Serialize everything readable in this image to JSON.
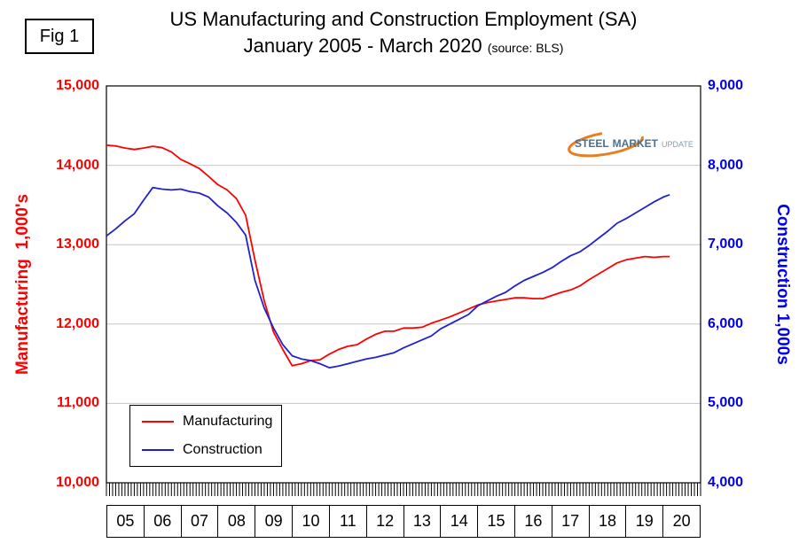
{
  "fig_label": "Fig 1",
  "title": {
    "line1": "US Manufacturing and Construction Employment (SA)",
    "line2": "January 2005 - March 2020",
    "source": "(source: BLS)"
  },
  "left_axis": {
    "title": "Manufacturing  1,000's",
    "color": "#ff0000",
    "min": 10000,
    "max": 15000,
    "ticks": [
      "15,000",
      "14,000",
      "13,000",
      "12,000",
      "11,000",
      "10,000"
    ]
  },
  "right_axis": {
    "title": "Construction 1,000s",
    "color": "#0000f0",
    "min": 4000,
    "max": 9000,
    "ticks": [
      "9,000",
      "8,000",
      "7,000",
      "6,000",
      "5,000",
      "4,000"
    ]
  },
  "x_axis": {
    "years": [
      "05",
      "06",
      "07",
      "08",
      "09",
      "10",
      "11",
      "12",
      "13",
      "14",
      "15",
      "16",
      "17",
      "18",
      "19",
      "20"
    ]
  },
  "legend": {
    "items": [
      {
        "label": "Manufacturing",
        "color": "#ff0000"
      },
      {
        "label": "Construction",
        "color": "#2222cc"
      }
    ]
  },
  "logo": {
    "steel": "STEEL",
    "market": "MARKET",
    "update": "UPDATE",
    "accent_color": "#e87e23",
    "text_color": "#49708c"
  },
  "chart_data": {
    "type": "line",
    "title": "US Manufacturing and Construction Employment (SA) January 2005 - March 2020",
    "source": "BLS",
    "grid": true,
    "x_range": [
      2005,
      2021
    ],
    "months_total": 192,
    "left_ylim": [
      10000,
      15000
    ],
    "right_ylim": [
      4000,
      9000
    ],
    "x": [
      2005,
      2005.25,
      2005.5,
      2005.75,
      2006,
      2006.25,
      2006.5,
      2006.75,
      2007,
      2007.25,
      2007.5,
      2007.75,
      2008,
      2008.25,
      2008.5,
      2008.75,
      2009,
      2009.25,
      2009.5,
      2009.75,
      2010,
      2010.25,
      2010.5,
      2010.75,
      2011,
      2011.25,
      2011.5,
      2011.75,
      2012,
      2012.25,
      2012.5,
      2012.75,
      2013,
      2013.25,
      2013.5,
      2013.75,
      2014,
      2014.25,
      2014.5,
      2014.75,
      2015,
      2015.25,
      2015.5,
      2015.75,
      2016,
      2016.25,
      2016.5,
      2016.75,
      2017,
      2017.25,
      2017.5,
      2017.75,
      2018,
      2018.25,
      2018.5,
      2018.75,
      2019,
      2019.25,
      2019.5,
      2019.75,
      2020,
      2020.17
    ],
    "series": [
      {
        "name": "Manufacturing",
        "axis": "left",
        "color": "#ff0000",
        "values": [
          14253,
          14243,
          14218,
          14200,
          14218,
          14240,
          14222,
          14167,
          14075,
          14020,
          13960,
          13860,
          13757,
          13690,
          13580,
          13370,
          12806,
          12290,
          11900,
          11680,
          11475,
          11500,
          11540,
          11550,
          11620,
          11680,
          11720,
          11740,
          11810,
          11870,
          11910,
          11910,
          11950,
          11950,
          11960,
          12010,
          12050,
          12090,
          12140,
          12190,
          12240,
          12270,
          12290,
          12310,
          12330,
          12330,
          12320,
          12320,
          12360,
          12400,
          12430,
          12480,
          12560,
          12630,
          12700,
          12770,
          12810,
          12830,
          12850,
          12840,
          12850,
          12850
        ]
      },
      {
        "name": "Construction",
        "axis": "right",
        "color": "#2222cc",
        "values": [
          7110,
          7200,
          7300,
          7390,
          7560,
          7720,
          7700,
          7690,
          7700,
          7670,
          7650,
          7600,
          7490,
          7400,
          7280,
          7120,
          6550,
          6200,
          5950,
          5740,
          5600,
          5560,
          5540,
          5500,
          5450,
          5470,
          5500,
          5530,
          5560,
          5580,
          5610,
          5640,
          5700,
          5750,
          5800,
          5850,
          5940,
          6000,
          6060,
          6120,
          6230,
          6290,
          6350,
          6400,
          6480,
          6550,
          6600,
          6650,
          6710,
          6790,
          6860,
          6910,
          6990,
          7080,
          7170,
          7270,
          7330,
          7400,
          7470,
          7540,
          7600,
          7630
        ]
      }
    ]
  }
}
